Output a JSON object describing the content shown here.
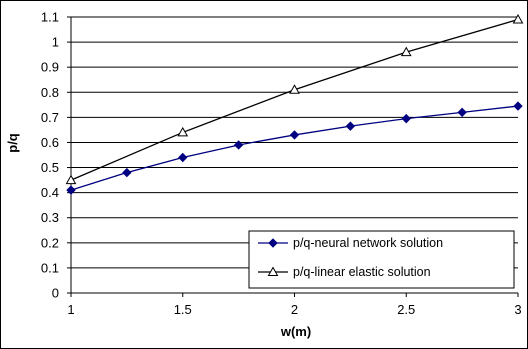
{
  "chart_data": {
    "type": "line",
    "xlabel": "w(m)",
    "ylabel": "p/q",
    "xlim": [
      1,
      3
    ],
    "ylim": [
      0,
      1.1
    ],
    "xticks": [
      1,
      1.5,
      2,
      2.5,
      3
    ],
    "yticks": [
      0,
      0.1,
      0.2,
      0.3,
      0.4,
      0.5,
      0.6,
      0.7,
      0.8,
      0.9,
      1,
      1.1
    ],
    "grid": "horizontal",
    "legend_position": "bottom-right",
    "series": [
      {
        "name": "p/q-neural network solution",
        "marker": "filled-diamond",
        "color": "#000080",
        "x": [
          1,
          1.25,
          1.5,
          1.75,
          2,
          2.25,
          2.5,
          2.75,
          3
        ],
        "y": [
          0.41,
          0.48,
          0.54,
          0.59,
          0.63,
          0.665,
          0.695,
          0.72,
          0.745
        ]
      },
      {
        "name": "p/q-linear elastic solution",
        "marker": "open-triangle",
        "color": "#000000",
        "x": [
          1,
          1.5,
          2,
          2.5,
          3
        ],
        "y": [
          0.45,
          0.64,
          0.81,
          0.96,
          1.09
        ]
      }
    ]
  }
}
